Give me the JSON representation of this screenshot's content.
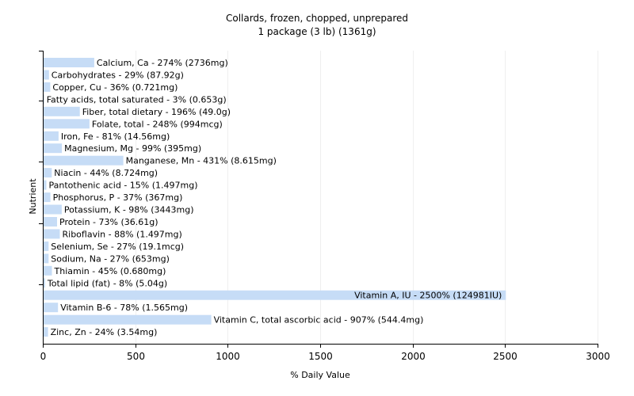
{
  "chart_data": {
    "type": "bar",
    "orientation": "horizontal",
    "title": "Collards, frozen, chopped, unprepared",
    "subtitle": "1 package (3 lb) (1361g)",
    "xlabel": "% Daily Value",
    "ylabel": "Nutrient",
    "xlim": [
      0,
      3000
    ],
    "xticks": [
      0,
      500,
      1000,
      1500,
      2000,
      2500,
      3000
    ],
    "grid": true,
    "bar_color": "#c6dcf6",
    "categories": [
      "Calcium, Ca",
      "Carbohydrates",
      "Copper, Cu",
      "Fatty acids, total saturated",
      "Fiber, total dietary",
      "Folate, total",
      "Iron, Fe",
      "Magnesium, Mg",
      "Manganese, Mn",
      "Niacin",
      "Pantothenic acid",
      "Phosphorus, P",
      "Potassium, K",
      "Protein",
      "Riboflavin",
      "Selenium, Se",
      "Sodium, Na",
      "Thiamin",
      "Total lipid (fat)",
      "Vitamin A, IU",
      "Vitamin B-6",
      "Vitamin C, total ascorbic acid",
      "Zinc, Zn"
    ],
    "values": [
      274,
      29,
      36,
      3,
      196,
      248,
      81,
      99,
      431,
      44,
      15,
      37,
      98,
      73,
      88,
      27,
      27,
      45,
      8,
      2500,
      78,
      907,
      24
    ],
    "labels": [
      "Calcium, Ca - 274% (2736mg)",
      "Carbohydrates - 29% (87.92g)",
      "Copper, Cu - 36% (0.721mg)",
      "Fatty acids, total saturated - 3% (0.653g)",
      "Fiber, total dietary - 196% (49.0g)",
      "Folate, total - 248% (994mcg)",
      "Iron, Fe - 81% (14.56mg)",
      "Magnesium, Mg - 99% (395mg)",
      "Manganese, Mn - 431% (8.615mg)",
      "Niacin - 44% (8.724mg)",
      "Pantothenic acid - 15% (1.497mg)",
      "Phosphorus, P - 37% (367mg)",
      "Potassium, K - 98% (3443mg)",
      "Protein - 73% (36.61g)",
      "Riboflavin - 88% (1.497mg)",
      "Selenium, Se - 27% (19.1mcg)",
      "Sodium, Na - 27% (653mg)",
      "Thiamin - 45% (0.680mg)",
      "Total lipid (fat) - 8% (5.04g)",
      "Vitamin A, IU - 2500% (124981IU)",
      "Vitamin B-6 - 78% (1.565mg)",
      "Vitamin C, total ascorbic acid - 907% (544.4mg)",
      "Zinc, Zn - 24% (3.54mg)"
    ]
  }
}
